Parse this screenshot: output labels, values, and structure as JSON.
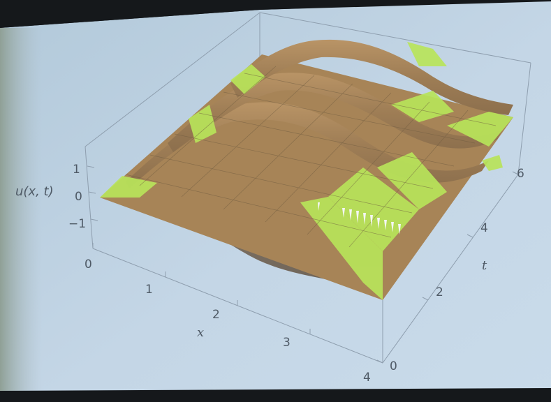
{
  "plot": {
    "zlabel": "u(x, t)",
    "xlabel": "x",
    "tlabel": "t",
    "z_ticks": [
      "1",
      "0",
      "−1"
    ],
    "x_ticks": [
      "0",
      "1",
      "2",
      "3",
      "4"
    ],
    "t_ticks": [
      "0",
      "2",
      "4",
      "6"
    ]
  },
  "colors": {
    "screen": "#bfd1e2",
    "surface_brown": "#a07f55",
    "surface_highlight": "#b8e45a",
    "shadow": "#756a5e"
  }
}
